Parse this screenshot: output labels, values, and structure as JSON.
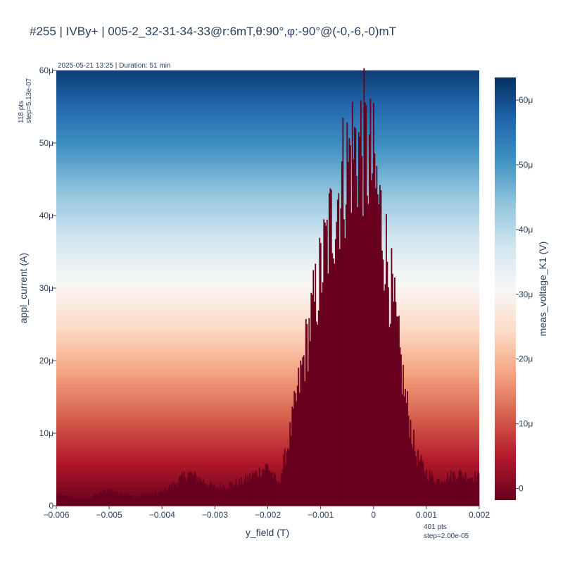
{
  "chart_data": {
    "type": "heatmap",
    "title": "#255 | IVBy+ | 005-2_32-31-34-33@r:6mT,θ:90°,φ:-90°@(-0,-6,-0)mT",
    "subtitle": "2025-05-21 13:25 | Duration: 51 min",
    "xlabel": "y_field (T)",
    "ylabel": "appl_current (A)",
    "colorbar_label": "meas_voltage_K1 (V)",
    "x_info": [
      "401 pts",
      "step=2.00e-05"
    ],
    "y_info": [
      "118 pts",
      "step=5.13e-07"
    ],
    "xlim": [
      -0.006,
      0.002
    ],
    "ylim": [
      0,
      6e-05
    ],
    "x_ticks": [
      {
        "value": -0.006,
        "label": "−0.006"
      },
      {
        "value": -0.005,
        "label": "−0.005"
      },
      {
        "value": -0.004,
        "label": "−0.004"
      },
      {
        "value": -0.003,
        "label": "−0.003"
      },
      {
        "value": -0.002,
        "label": "−0.002"
      },
      {
        "value": -0.001,
        "label": "−0.001"
      },
      {
        "value": 0,
        "label": "0"
      },
      {
        "value": 0.001,
        "label": "0.001"
      },
      {
        "value": 0.002,
        "label": "0.002"
      }
    ],
    "y_ticks": [
      {
        "value": 0,
        "label": "0"
      },
      {
        "value": 1e-05,
        "label": "10μ"
      },
      {
        "value": 2e-05,
        "label": "20μ"
      },
      {
        "value": 3e-05,
        "label": "30μ"
      },
      {
        "value": 4e-05,
        "label": "40μ"
      },
      {
        "value": 5e-05,
        "label": "50μ"
      },
      {
        "value": 6e-05,
        "label": "60μ"
      }
    ],
    "colorscale": [
      "#67001f",
      "#b2182b",
      "#d6604d",
      "#f4a582",
      "#fddbc7",
      "#f7f7f7",
      "#d1e5f0",
      "#92c5de",
      "#4393c3",
      "#2166ac",
      "#053061"
    ],
    "zlim": [
      -1.8e-06,
      6.35e-05
    ],
    "colorbar_ticks": [
      {
        "value": 0,
        "label": "0"
      },
      {
        "value": 1e-05,
        "label": "10μ"
      },
      {
        "value": 2e-05,
        "label": "20μ"
      },
      {
        "value": 3e-05,
        "label": "30μ"
      },
      {
        "value": 4e-05,
        "label": "40μ"
      },
      {
        "value": 5e-05,
        "label": "50μ"
      },
      {
        "value": 6e-05,
        "label": "60μ"
      }
    ],
    "superconducting_envelope": {
      "description_x": [
        -0.006,
        -0.0055,
        -0.005,
        -0.0045,
        -0.004,
        -0.0035,
        -0.003,
        -0.0025,
        -0.002,
        -0.0018,
        -0.0016,
        -0.0014,
        -0.0012,
        -0.001,
        -0.0008,
        -0.0006,
        -0.0004,
        -0.0002,
        0,
        0.0002,
        0.0004,
        0.0006,
        0.0008,
        0.001,
        0.0012,
        0.0014,
        0.0016,
        0.0018,
        0.002
      ],
      "critical_current": [
        1.5e-06,
        8e-07,
        2.2e-06,
        1.2e-06,
        1.8e-06,
        4.5e-06,
        2.5e-06,
        3.2e-06,
        5.5e-06,
        2.8e-06,
        9e-06,
        1.7e-05,
        2.5e-05,
        3.2e-05,
        3.9e-05,
        4.5e-05,
        4.9e-05,
        5e-05,
        4.6e-05,
        3.7e-05,
        2.6e-05,
        1.5e-05,
        7e-06,
        4.5e-06,
        3.5e-06,
        4e-06,
        4.5e-06,
        4e-06,
        4e-06
      ],
      "normal_ohmic_V_per_A": 1.06,
      "offset_V": -1.8e-06
    }
  }
}
